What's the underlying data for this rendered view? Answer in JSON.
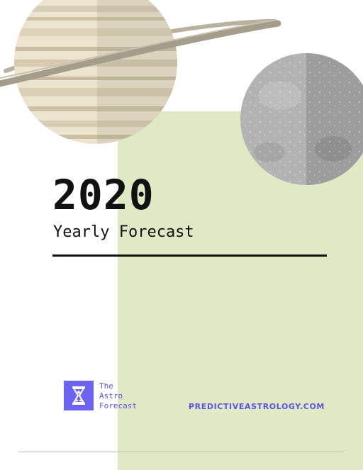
{
  "cover": {
    "year": "2020",
    "subtitle": "Yearly Forecast"
  },
  "brand": {
    "logo_icon": "hourglass-stars-icon",
    "name_line1": "The",
    "name_line2": "Astro",
    "name_line3": "Forecast",
    "website": "PREDICTIVEASTROLOGY.COM"
  },
  "colors": {
    "panel_green": "#dfe9c3",
    "brand_purple": "#6c63f5",
    "text_dark": "#111111"
  }
}
